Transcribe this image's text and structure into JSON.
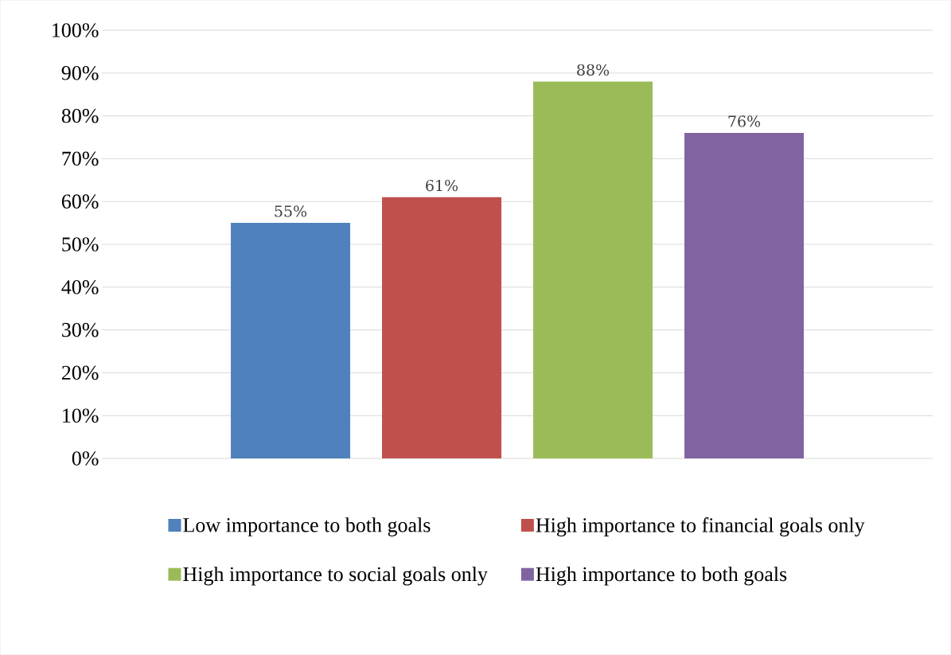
{
  "chart_data": {
    "type": "bar",
    "categories": [
      null
    ],
    "series": [
      {
        "name": "Low importance to both goals",
        "color": "#4f81bd",
        "values": [
          55
        ],
        "value_labels": [
          "55%"
        ]
      },
      {
        "name": "High importance to financial goals only",
        "color": "#c0504d",
        "values": [
          61
        ],
        "value_labels": [
          "61%"
        ]
      },
      {
        "name": "High importance to social goals only",
        "color": "#9bbb59",
        "values": [
          88
        ],
        "value_labels": [
          "88%"
        ]
      },
      {
        "name": "High importance to both goals",
        "color": "#8064a2",
        "values": [
          76
        ],
        "value_labels": [
          "76%"
        ]
      }
    ],
    "ylim": [
      0,
      100
    ],
    "yticks": [
      {
        "value": 0,
        "label": "0%"
      },
      {
        "value": 10,
        "label": "10%"
      },
      {
        "value": 20,
        "label": "20%"
      },
      {
        "value": 30,
        "label": "30%"
      },
      {
        "value": 40,
        "label": "40%"
      },
      {
        "value": 50,
        "label": "50%"
      },
      {
        "value": 60,
        "label": "60%"
      },
      {
        "value": 70,
        "label": "70%"
      },
      {
        "value": 80,
        "label": "80%"
      },
      {
        "value": 90,
        "label": "90%"
      },
      {
        "value": 100,
        "label": "100%"
      }
    ],
    "grid": "y",
    "legend": "bottom"
  }
}
